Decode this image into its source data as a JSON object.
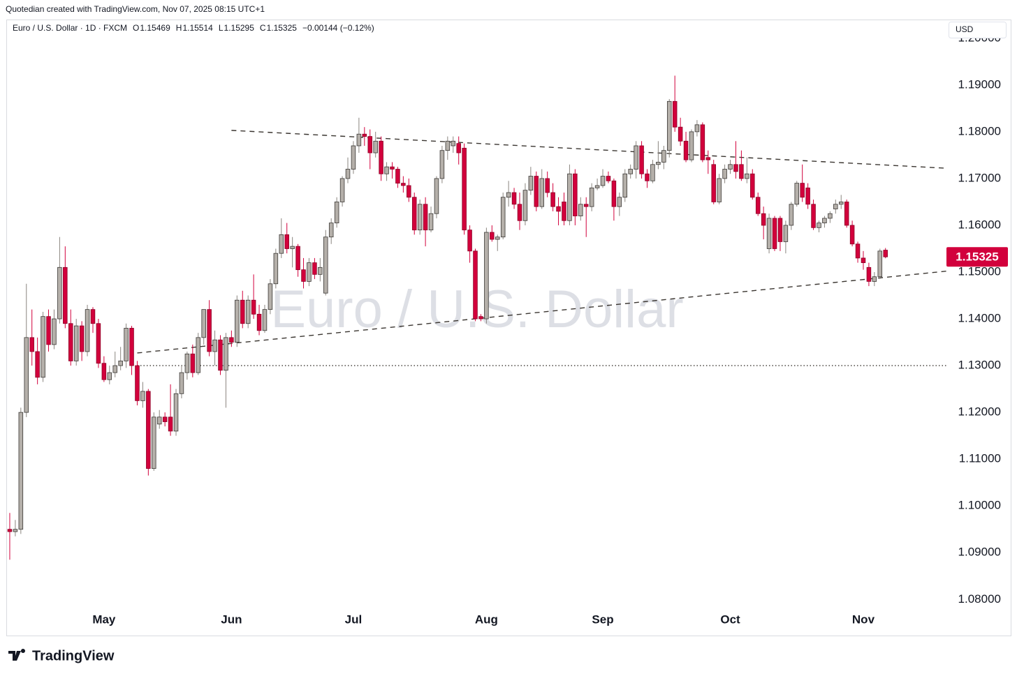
{
  "credit": "Quotedian created with TradingView.com, Nov 07, 2025 08:15 UTC+1",
  "brand": "TradingView",
  "chart_data": {
    "type": "candlestick",
    "title": "Euro / U.S. Dollar · 1D · FXCM",
    "watermark": "Euro / U.S. Dollar",
    "currency": "USD",
    "ohlc_labels": [
      "O",
      "H",
      "L",
      "C"
    ],
    "change_text": "−0.00144 (−0.12%)",
    "up_color": "#b5b0aa",
    "down_color": "#d2003c",
    "xlim": [
      -0.5,
      169
    ],
    "xticks": [
      {
        "value": 17,
        "label": "May"
      },
      {
        "value": 40,
        "label": "Jun"
      },
      {
        "value": 62,
        "label": "Jul"
      },
      {
        "value": 86,
        "label": "Aug"
      },
      {
        "value": 107,
        "label": "Sep"
      },
      {
        "value": 130,
        "label": "Oct"
      },
      {
        "value": 154,
        "label": "Nov"
      }
    ],
    "ylim": [
      1.0784,
      1.2037
    ],
    "yticks": [
      {
        "value": 1.08,
        "label": "1.08000"
      },
      {
        "value": 1.09,
        "label": "1.09000"
      },
      {
        "value": 1.1,
        "label": "1.10000"
      },
      {
        "value": 1.11,
        "label": "1.11000"
      },
      {
        "value": 1.12,
        "label": "1.12000"
      },
      {
        "value": 1.13,
        "label": "1.13000"
      },
      {
        "value": 1.14,
        "label": "1.14000"
      },
      {
        "value": 1.15,
        "label": "1.15000"
      },
      {
        "value": 1.16,
        "label": "1.16000"
      },
      {
        "value": 1.17,
        "label": "1.17000"
      },
      {
        "value": 1.18,
        "label": "1.18000"
      },
      {
        "value": 1.19,
        "label": "1.19000"
      },
      {
        "value": 1.2,
        "label": "1.20000"
      }
    ],
    "trendlines": [
      {
        "style": "dashed",
        "points": [
          [
            40,
            1.1803
          ],
          [
            169,
            1.1722
          ]
        ]
      },
      {
        "style": "dashed",
        "points": [
          [
            23,
            1.1327
          ],
          [
            169,
            1.1502
          ]
        ]
      },
      {
        "style": "dotted",
        "points": [
          [
            23,
            1.13
          ],
          [
            169,
            1.13
          ]
        ]
      }
    ],
    "candles": [
      [
        1.095,
        1.0985,
        1.0885,
        1.0945
      ],
      [
        1.0945,
        1.097,
        1.0935,
        1.095
      ],
      [
        1.095,
        1.121,
        1.094,
        1.12
      ],
      [
        1.12,
        1.1475,
        1.119,
        1.136
      ],
      [
        1.136,
        1.142,
        1.13,
        1.133
      ],
      [
        1.133,
        1.136,
        1.126,
        1.1275
      ],
      [
        1.1275,
        1.1415,
        1.1265,
        1.1405
      ],
      [
        1.1405,
        1.142,
        1.133,
        1.1345
      ],
      [
        1.1345,
        1.142,
        1.1335,
        1.14
      ],
      [
        1.14,
        1.1575,
        1.139,
        1.151
      ],
      [
        1.151,
        1.1555,
        1.138,
        1.139
      ],
      [
        1.139,
        1.142,
        1.13,
        1.131
      ],
      [
        1.131,
        1.14,
        1.13,
        1.1385
      ],
      [
        1.1385,
        1.1395,
        1.131,
        1.133
      ],
      [
        1.133,
        1.143,
        1.132,
        1.142
      ],
      [
        1.142,
        1.1425,
        1.137,
        1.139
      ],
      [
        1.139,
        1.14,
        1.1295,
        1.1305
      ],
      [
        1.1305,
        1.132,
        1.1265,
        1.127
      ],
      [
        1.127,
        1.13,
        1.126,
        1.1285
      ],
      [
        1.1285,
        1.133,
        1.1275,
        1.13
      ],
      [
        1.13,
        1.134,
        1.129,
        1.131
      ],
      [
        1.131,
        1.139,
        1.1295,
        1.138
      ],
      [
        1.138,
        1.1385,
        1.128,
        1.13
      ],
      [
        1.13,
        1.131,
        1.1215,
        1.1225
      ],
      [
        1.1225,
        1.1265,
        1.121,
        1.1245
      ],
      [
        1.1245,
        1.125,
        1.1065,
        1.108
      ],
      [
        1.108,
        1.12,
        1.1075,
        1.119
      ],
      [
        1.1175,
        1.1205,
        1.1165,
        1.119
      ],
      [
        1.119,
        1.12,
        1.117,
        1.118
      ],
      [
        1.119,
        1.126,
        1.115,
        1.116
      ],
      [
        1.116,
        1.125,
        1.115,
        1.124
      ],
      [
        1.124,
        1.13,
        1.123,
        1.1285
      ],
      [
        1.1285,
        1.133,
        1.127,
        1.1325
      ],
      [
        1.1325,
        1.1345,
        1.1275,
        1.1285
      ],
      [
        1.1285,
        1.137,
        1.128,
        1.136
      ],
      [
        1.136,
        1.142,
        1.1345,
        1.142
      ],
      [
        1.142,
        1.144,
        1.132,
        1.133
      ],
      [
        1.133,
        1.1375,
        1.13,
        1.1355
      ],
      [
        1.1355,
        1.1365,
        1.128,
        1.129
      ],
      [
        1.129,
        1.137,
        1.121,
        1.136
      ],
      [
        1.136,
        1.1375,
        1.134,
        1.135
      ],
      [
        1.135,
        1.145,
        1.134,
        1.144
      ],
      [
        1.144,
        1.146,
        1.138,
        1.139
      ],
      [
        1.139,
        1.145,
        1.138,
        1.144
      ],
      [
        1.144,
        1.1495,
        1.14,
        1.141
      ],
      [
        1.141,
        1.143,
        1.1365,
        1.1375
      ],
      [
        1.1375,
        1.143,
        1.137,
        1.142
      ],
      [
        1.142,
        1.1485,
        1.141,
        1.1475
      ],
      [
        1.1475,
        1.155,
        1.1465,
        1.154
      ],
      [
        1.154,
        1.1615,
        1.153,
        1.158
      ],
      [
        1.158,
        1.1605,
        1.154,
        1.155
      ],
      [
        1.155,
        1.1575,
        1.151,
        1.1555
      ],
      [
        1.1555,
        1.156,
        1.149,
        1.1505
      ],
      [
        1.1505,
        1.153,
        1.1465,
        1.148
      ],
      [
        1.148,
        1.153,
        1.147,
        1.152
      ],
      [
        1.152,
        1.153,
        1.1485,
        1.1495
      ],
      [
        1.1495,
        1.153,
        1.148,
        1.151
      ],
      [
        1.1455,
        1.159,
        1.145,
        1.1575
      ],
      [
        1.1575,
        1.1615,
        1.156,
        1.1605
      ],
      [
        1.1605,
        1.166,
        1.1595,
        1.165
      ],
      [
        1.165,
        1.1705,
        1.164,
        1.17
      ],
      [
        1.17,
        1.1745,
        1.169,
        1.172
      ],
      [
        1.172,
        1.178,
        1.171,
        1.177
      ],
      [
        1.177,
        1.183,
        1.1755,
        1.1795
      ],
      [
        1.1795,
        1.181,
        1.177,
        1.179
      ],
      [
        1.179,
        1.1805,
        1.172,
        1.1755
      ],
      [
        1.1755,
        1.18,
        1.1745,
        1.178
      ],
      [
        1.178,
        1.179,
        1.1695,
        1.171
      ],
      [
        1.171,
        1.1735,
        1.1695,
        1.1725
      ],
      [
        1.1725,
        1.1735,
        1.17,
        1.172
      ],
      [
        1.172,
        1.1725,
        1.168,
        1.169
      ],
      [
        1.169,
        1.1705,
        1.167,
        1.1685
      ],
      [
        1.1685,
        1.17,
        1.165,
        1.166
      ],
      [
        1.166,
        1.167,
        1.158,
        1.159
      ],
      [
        1.159,
        1.1655,
        1.158,
        1.1645
      ],
      [
        1.1645,
        1.166,
        1.1555,
        1.159
      ],
      [
        1.159,
        1.164,
        1.1585,
        1.1625
      ],
      [
        1.1625,
        1.1705,
        1.1615,
        1.17
      ],
      [
        1.17,
        1.177,
        1.169,
        1.176
      ],
      [
        1.176,
        1.179,
        1.174,
        1.178
      ],
      [
        1.177,
        1.179,
        1.1755,
        1.178
      ],
      [
        1.1775,
        1.179,
        1.173,
        1.1755
      ],
      [
        1.1765,
        1.1775,
        1.158,
        1.159
      ],
      [
        1.159,
        1.16,
        1.152,
        1.1545
      ],
      [
        1.1545,
        1.155,
        1.1395,
        1.14
      ],
      [
        1.1405,
        1.141,
        1.1395,
        1.14
      ],
      [
        1.14,
        1.1595,
        1.139,
        1.1585
      ],
      [
        1.1585,
        1.16,
        1.1565,
        1.157
      ],
      [
        1.157,
        1.158,
        1.1545,
        1.1575
      ],
      [
        1.1575,
        1.167,
        1.157,
        1.166
      ],
      [
        1.166,
        1.1695,
        1.164,
        1.167
      ],
      [
        1.167,
        1.168,
        1.1635,
        1.1645
      ],
      [
        1.1645,
        1.167,
        1.159,
        1.161
      ],
      [
        1.161,
        1.169,
        1.16,
        1.1675
      ],
      [
        1.1675,
        1.1725,
        1.1665,
        1.1705
      ],
      [
        1.1705,
        1.1715,
        1.163,
        1.164
      ],
      [
        1.164,
        1.172,
        1.1635,
        1.17
      ],
      [
        1.17,
        1.1715,
        1.166,
        1.167
      ],
      [
        1.167,
        1.169,
        1.163,
        1.164
      ],
      [
        1.164,
        1.166,
        1.16,
        1.163
      ],
      [
        1.165,
        1.167,
        1.16,
        1.161
      ],
      [
        1.161,
        1.173,
        1.16,
        1.171
      ],
      [
        1.171,
        1.172,
        1.16,
        1.162
      ],
      [
        1.162,
        1.166,
        1.161,
        1.1645
      ],
      [
        1.1645,
        1.166,
        1.1575,
        1.164
      ],
      [
        1.164,
        1.169,
        1.163,
        1.168
      ],
      [
        1.168,
        1.17,
        1.1675,
        1.1685
      ],
      [
        1.1685,
        1.172,
        1.168,
        1.1705
      ],
      [
        1.1705,
        1.1715,
        1.169,
        1.1695
      ],
      [
        1.1695,
        1.17,
        1.161,
        1.164
      ],
      [
        1.164,
        1.167,
        1.162,
        1.166
      ],
      [
        1.166,
        1.172,
        1.165,
        1.171
      ],
      [
        1.171,
        1.173,
        1.17,
        1.172
      ],
      [
        1.172,
        1.178,
        1.17,
        1.177
      ],
      [
        1.177,
        1.178,
        1.17,
        1.171
      ],
      [
        1.171,
        1.172,
        1.168,
        1.1695
      ],
      [
        1.1695,
        1.174,
        1.169,
        1.173
      ],
      [
        1.173,
        1.178,
        1.172,
        1.1735
      ],
      [
        1.1735,
        1.177,
        1.172,
        1.176
      ],
      [
        1.176,
        1.187,
        1.1745,
        1.1865
      ],
      [
        1.1865,
        1.192,
        1.18,
        1.181
      ],
      [
        1.181,
        1.183,
        1.177,
        1.178
      ],
      [
        1.178,
        1.18,
        1.1735,
        1.174
      ],
      [
        1.174,
        1.1805,
        1.1735,
        1.18
      ],
      [
        1.18,
        1.1825,
        1.179,
        1.1815
      ],
      [
        1.1815,
        1.182,
        1.1735,
        1.174
      ],
      [
        1.1745,
        1.176,
        1.171,
        1.174
      ],
      [
        1.173,
        1.174,
        1.1645,
        1.165
      ],
      [
        1.165,
        1.171,
        1.1645,
        1.17
      ],
      [
        1.17,
        1.173,
        1.169,
        1.172
      ],
      [
        1.172,
        1.174,
        1.171,
        1.173
      ],
      [
        1.173,
        1.178,
        1.17,
        1.1715
      ],
      [
        1.173,
        1.176,
        1.1695,
        1.17
      ],
      [
        1.17,
        1.1745,
        1.169,
        1.171
      ],
      [
        1.171,
        1.172,
        1.1655,
        1.166
      ],
      [
        1.166,
        1.167,
        1.162,
        1.1625
      ],
      [
        1.1625,
        1.164,
        1.157,
        1.16
      ],
      [
        1.155,
        1.1625,
        1.154,
        1.1615
      ],
      [
        1.1615,
        1.162,
        1.1545,
        1.155
      ],
      [
        1.1615,
        1.162,
        1.1545,
        1.1565
      ],
      [
        1.1565,
        1.161,
        1.154,
        1.16
      ],
      [
        1.16,
        1.165,
        1.159,
        1.1645
      ],
      [
        1.1645,
        1.1695,
        1.164,
        1.169
      ],
      [
        1.169,
        1.173,
        1.165,
        1.166
      ],
      [
        1.168,
        1.169,
        1.1635,
        1.1645
      ],
      [
        1.1645,
        1.1655,
        1.159,
        1.1595
      ],
      [
        1.1595,
        1.161,
        1.1585,
        1.1605
      ],
      [
        1.1605,
        1.162,
        1.1595,
        1.1615
      ],
      [
        1.1615,
        1.163,
        1.1605,
        1.1625
      ],
      [
        1.1635,
        1.1655,
        1.1625,
        1.1645
      ],
      [
        1.1645,
        1.1665,
        1.1635,
        1.165
      ],
      [
        1.165,
        1.1655,
        1.1595,
        1.16
      ],
      [
        1.16,
        1.161,
        1.1555,
        1.156
      ],
      [
        1.156,
        1.1565,
        1.152,
        1.153
      ],
      [
        1.153,
        1.1545,
        1.1505,
        1.152
      ],
      [
        1.151,
        1.152,
        1.147,
        1.148
      ],
      [
        1.148,
        1.15,
        1.147,
        1.149
      ],
      [
        1.149,
        1.155,
        1.1485,
        1.1545
      ],
      [
        1.15469,
        1.15514,
        1.15295,
        1.15325
      ]
    ]
  }
}
